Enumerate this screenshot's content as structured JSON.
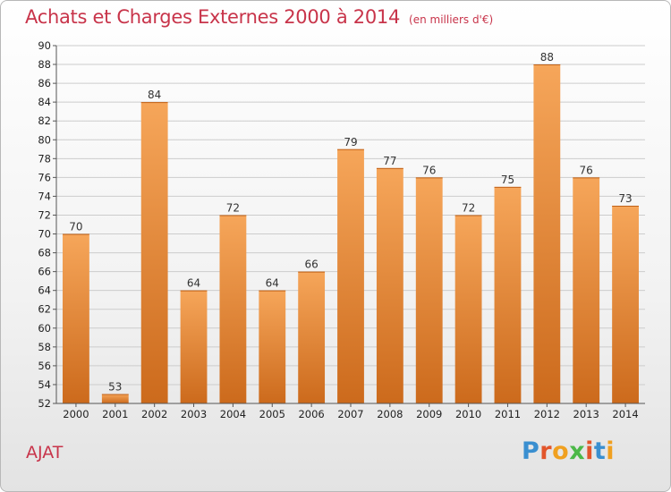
{
  "header": {
    "title": "Achats et Charges Externes 2000 à 2014",
    "subtitle": "(en milliers d'€)"
  },
  "footer": {
    "commune": "AJAT",
    "logo_text": "Proxiti",
    "logo_colors": [
      "#3a8fd0",
      "#e2552b",
      "#f0a020",
      "#4cb848",
      "#e2552b",
      "#3a8fd0",
      "#f0a020"
    ]
  },
  "colors": {
    "bar_top": "#f6a65a",
    "bar_bottom": "#cc6a1c",
    "grid": "#cccccc",
    "title": "#c8344a"
  },
  "chart_data": {
    "type": "bar",
    "title": "Achats et Charges Externes 2000 à 2014",
    "subtitle": "(en milliers d'€)",
    "categories": [
      "2000",
      "2001",
      "2002",
      "2003",
      "2004",
      "2005",
      "2006",
      "2007",
      "2008",
      "2009",
      "2010",
      "2011",
      "2012",
      "2013",
      "2014"
    ],
    "values": [
      70,
      53,
      84,
      64,
      72,
      64,
      66,
      79,
      77,
      76,
      72,
      75,
      88,
      76,
      73
    ],
    "ylim": [
      52,
      90
    ],
    "yticks": [
      52,
      54,
      56,
      58,
      60,
      62,
      64,
      66,
      68,
      70,
      72,
      74,
      76,
      78,
      80,
      82,
      84,
      86,
      88,
      90
    ],
    "grid": true,
    "data_labels": true
  }
}
